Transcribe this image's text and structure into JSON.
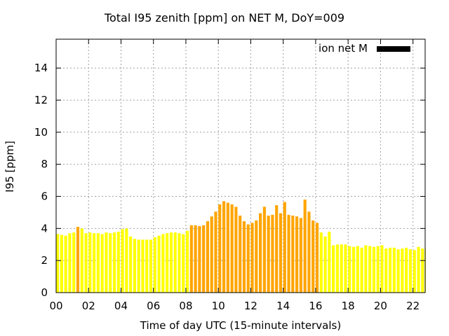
{
  "chart_data": {
    "type": "bar",
    "title": "Total I95 zenith [ppm] on NET M, DoY=009",
    "xlabel": "Time of day UTC (15-minute intervals)",
    "ylabel": "I95 [ppm]",
    "x_tick_labels": [
      "00",
      "02",
      "04",
      "06",
      "08",
      "10",
      "12",
      "14",
      "16",
      "18",
      "20",
      "22"
    ],
    "y_tick_labels": [
      "0",
      "2",
      "4",
      "6",
      "8",
      "10",
      "12",
      "14"
    ],
    "xlim": [
      0,
      22.75
    ],
    "ylim": [
      0,
      15.8
    ],
    "grid": true,
    "legend": {
      "position": "top-right",
      "entries": [
        {
          "label": "ion net M",
          "color": "#000000"
        }
      ]
    },
    "colors": {
      "low": "#ffff00",
      "high": "#ffa500"
    },
    "bar_width_hours": 0.18,
    "series": [
      {
        "x": [
          0.0,
          0.25,
          0.5,
          0.75,
          1.0,
          1.25,
          1.5,
          1.75,
          2.0,
          2.25,
          2.5,
          2.75,
          3.0,
          3.25,
          3.5,
          3.75,
          4.0,
          4.25,
          4.5,
          4.75,
          5.0,
          5.25,
          5.5,
          5.75,
          6.0,
          6.25,
          6.5,
          6.75,
          7.0,
          7.25,
          7.5,
          7.75,
          8.0,
          8.25,
          8.5,
          8.75,
          9.0,
          9.25,
          9.5,
          9.75,
          10.0,
          10.25,
          10.5,
          10.75,
          11.0,
          11.25,
          11.5,
          11.75,
          12.0,
          12.25,
          12.5,
          12.75,
          13.0,
          13.25,
          13.5,
          13.75,
          14.0,
          14.25,
          14.5,
          14.75,
          15.0,
          15.25,
          15.5,
          15.75,
          16.0,
          16.25,
          16.5,
          16.75,
          17.0,
          17.25,
          17.5,
          17.75,
          18.0,
          18.25,
          18.5,
          18.75,
          19.0,
          19.25,
          19.5,
          19.75,
          20.0,
          20.25,
          20.5,
          20.75,
          21.0,
          21.25,
          21.5,
          21.75,
          22.0,
          22.25,
          22.5,
          22.75
        ],
        "values": [
          3.65,
          3.6,
          3.55,
          3.7,
          3.75,
          4.1,
          4.0,
          3.7,
          3.75,
          3.7,
          3.7,
          3.65,
          3.75,
          3.7,
          3.75,
          3.8,
          3.95,
          4.0,
          3.5,
          3.35,
          3.3,
          3.3,
          3.3,
          3.3,
          3.45,
          3.55,
          3.65,
          3.7,
          3.75,
          3.75,
          3.7,
          3.65,
          3.85,
          4.2,
          4.2,
          4.15,
          4.2,
          4.45,
          4.75,
          5.05,
          5.5,
          5.7,
          5.6,
          5.5,
          5.35,
          4.8,
          4.45,
          4.25,
          4.35,
          4.5,
          4.95,
          5.35,
          4.8,
          4.85,
          5.45,
          4.95,
          5.65,
          4.85,
          4.8,
          4.75,
          4.65,
          5.8,
          5.05,
          4.5,
          4.35,
          3.75,
          3.5,
          3.8,
          2.95,
          3.0,
          3.0,
          3.0,
          2.9,
          2.85,
          2.9,
          2.8,
          2.95,
          2.9,
          2.85,
          2.9,
          2.95,
          2.75,
          2.8,
          2.8,
          2.7,
          2.75,
          2.8,
          2.7,
          2.65,
          2.85,
          2.75,
          2.7
        ],
        "levels": [
          "low",
          "low",
          "low",
          "low",
          "low",
          "high",
          "low",
          "low",
          "low",
          "low",
          "low",
          "low",
          "low",
          "low",
          "low",
          "low",
          "low",
          "low",
          "low",
          "low",
          "low",
          "low",
          "low",
          "low",
          "low",
          "low",
          "low",
          "low",
          "low",
          "low",
          "low",
          "low",
          "low",
          "high",
          "high",
          "high",
          "high",
          "high",
          "high",
          "high",
          "high",
          "high",
          "high",
          "high",
          "high",
          "high",
          "high",
          "high",
          "high",
          "high",
          "high",
          "high",
          "high",
          "high",
          "high",
          "high",
          "high",
          "high",
          "high",
          "high",
          "high",
          "high",
          "high",
          "high",
          "high",
          "low",
          "low",
          "low",
          "low",
          "low",
          "low",
          "low",
          "low",
          "low",
          "low",
          "low",
          "low",
          "low",
          "low",
          "low",
          "low",
          "low",
          "low",
          "low",
          "low",
          "low",
          "low",
          "low",
          "low",
          "low",
          "low",
          "low"
        ]
      }
    ]
  }
}
